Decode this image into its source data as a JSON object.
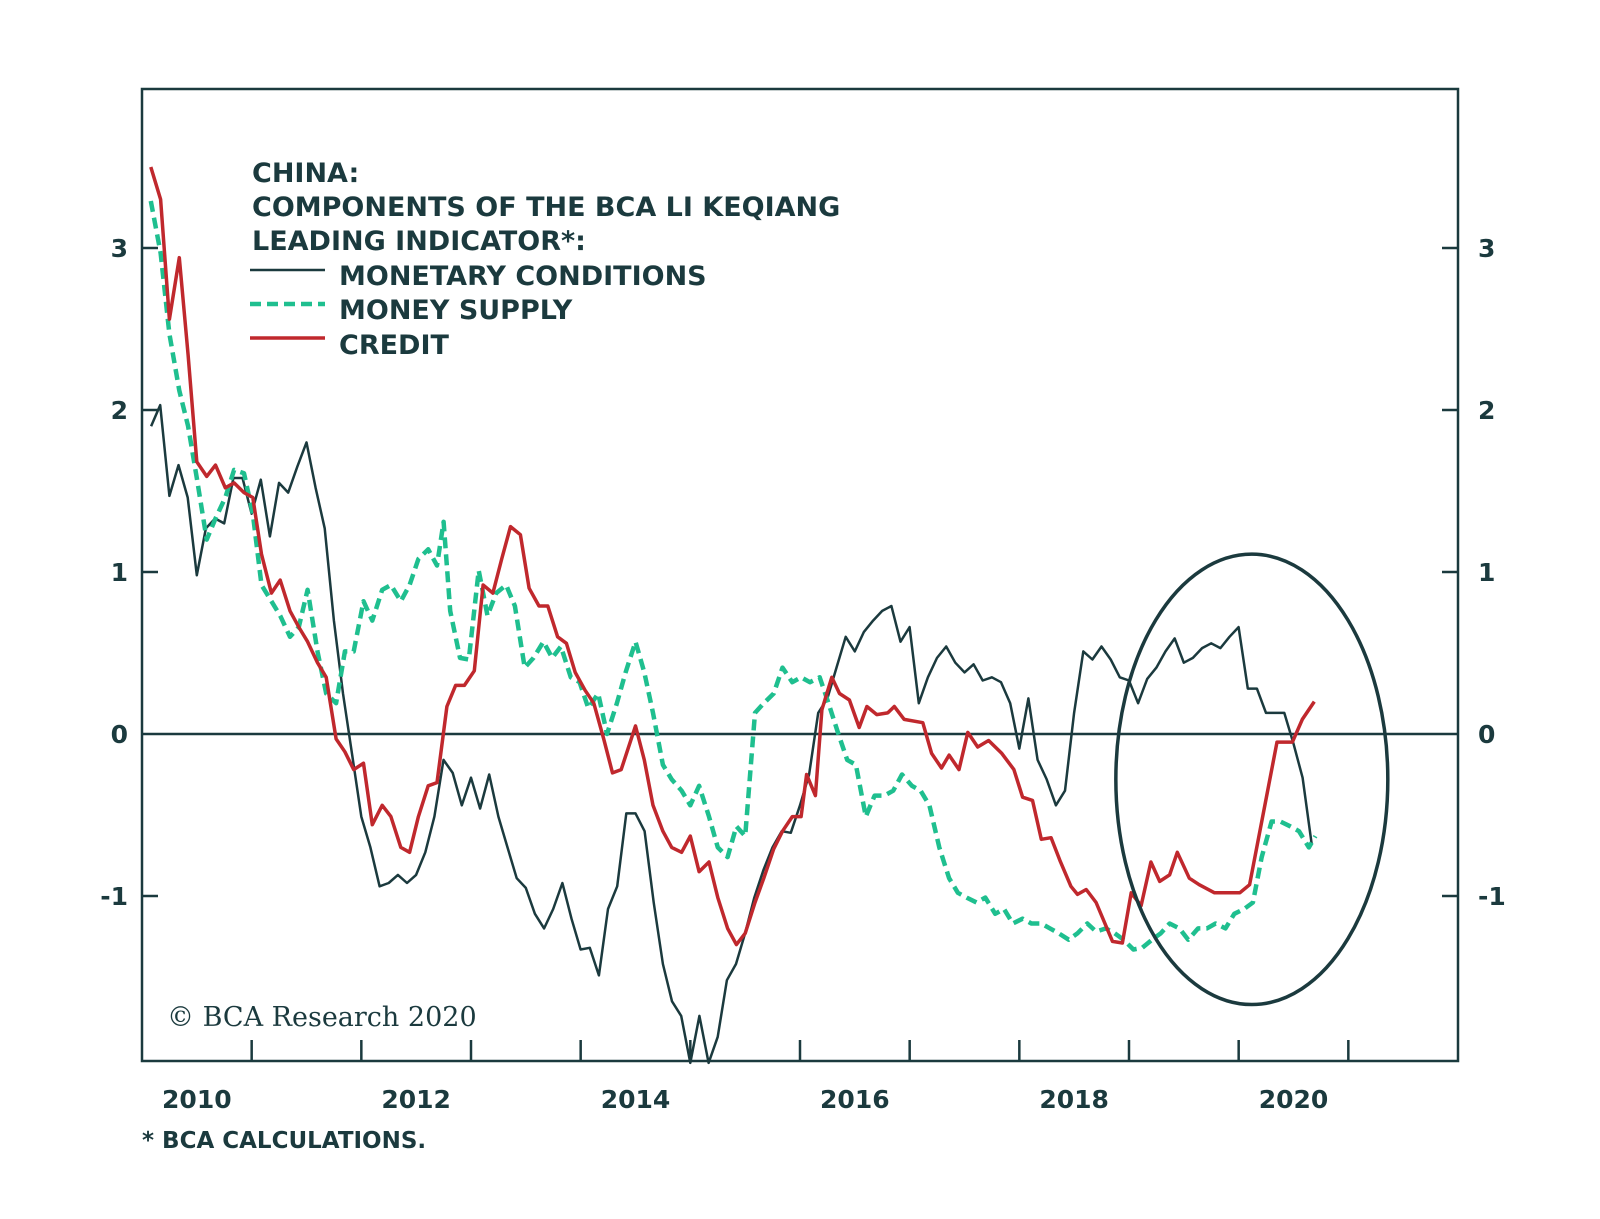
{
  "chart_data": {
    "type": "line",
    "title": [
      "CHINA:",
      "COMPONENTS OF THE BCA LI KEQIANG",
      "LEADING INDICATOR*:"
    ],
    "xlabel": "",
    "ylabel": "",
    "xlim": [
      2010,
      2022
    ],
    "ylim": [
      -2,
      4
    ],
    "x_tick_labels": [
      "2010",
      "2012",
      "2014",
      "2016",
      "2018",
      "2020"
    ],
    "x_tick_values": [
      2010.5,
      2012.5,
      2014.5,
      2016.5,
      2018.5,
      2020.5
    ],
    "x_minor_ticks": [
      2011,
      2012,
      2013,
      2014,
      2015,
      2016,
      2017,
      2018,
      2019,
      2020,
      2021
    ],
    "y_ticks": [
      3,
      2,
      1,
      0,
      -1
    ],
    "y_tick_labels": [
      "3",
      "2",
      "1",
      "0",
      "-1"
    ],
    "zero_line": true,
    "grid": false,
    "legend_position": "top-left",
    "colors": {
      "axis": "#1b3a3e",
      "monetary": "#1b3a3e",
      "money": "#1fbf8f",
      "credit": "#c0282d"
    },
    "series": [
      {
        "name": "MONETARY CONDITIONS",
        "style": "solid",
        "x_start": 2010.083,
        "frequency": "monthly",
        "values": [
          1.9,
          2.03,
          1.47,
          1.66,
          1.46,
          0.98,
          1.27,
          1.33,
          1.3,
          1.58,
          1.58,
          1.36,
          1.57,
          1.22,
          1.55,
          1.49,
          1.65,
          1.8,
          1.52,
          1.27,
          0.7,
          0.25,
          -0.13,
          -0.51,
          -0.7,
          -0.94,
          -0.92,
          -0.87,
          -0.92,
          -0.87,
          -0.73,
          -0.51,
          -0.16,
          -0.24,
          -0.44,
          -0.27,
          -0.46,
          -0.25,
          -0.51,
          -0.7,
          -0.89,
          -0.95,
          -1.11,
          -1.2,
          -1.08,
          -0.92,
          -1.14,
          -1.33,
          -1.32,
          -1.49,
          -1.08,
          -0.94,
          -0.49,
          -0.49,
          -0.6,
          -1.04,
          -1.42,
          -1.65,
          -1.74,
          -2.03,
          -1.74,
          -2.03,
          -1.87,
          -1.52,
          -1.42,
          -1.23,
          -1.01,
          -0.84,
          -0.7,
          -0.6,
          -0.61,
          -0.44,
          -0.25,
          0.13,
          0.22,
          0.41,
          0.6,
          0.51,
          0.63,
          0.7,
          0.76,
          0.79,
          0.57,
          0.66,
          0.19,
          0.35,
          0.47,
          0.54,
          0.44,
          0.38,
          0.43,
          0.33,
          0.35,
          0.32,
          0.19,
          -0.09,
          0.22,
          -0.16,
          -0.28,
          -0.44,
          -0.35,
          0.13,
          0.51,
          0.46,
          0.54,
          0.46,
          0.35,
          0.33,
          0.19,
          0.34,
          0.41,
          0.51,
          0.59,
          0.44,
          0.47,
          0.53,
          0.56,
          0.53,
          0.6,
          0.66,
          0.28,
          0.28,
          0.13,
          0.13,
          0.13,
          -0.06,
          -0.27,
          -0.68
        ]
      },
      {
        "name": "MONEY SUPPLY",
        "style": "dashed",
        "points": [
          [
            2010.08,
            3.29
          ],
          [
            2010.17,
            2.97
          ],
          [
            2010.25,
            2.47
          ],
          [
            2010.34,
            2.12
          ],
          [
            2010.42,
            1.9
          ],
          [
            2010.5,
            1.58
          ],
          [
            2010.59,
            1.2
          ],
          [
            2010.67,
            1.33
          ],
          [
            2010.76,
            1.46
          ],
          [
            2010.84,
            1.63
          ],
          [
            2010.93,
            1.61
          ],
          [
            2011.01,
            1.36
          ],
          [
            2011.09,
            0.92
          ],
          [
            2011.18,
            0.82
          ],
          [
            2011.26,
            0.73
          ],
          [
            2011.35,
            0.6
          ],
          [
            2011.43,
            0.66
          ],
          [
            2011.51,
            0.89
          ],
          [
            2011.6,
            0.51
          ],
          [
            2011.68,
            0.25
          ],
          [
            2011.77,
            0.19
          ],
          [
            2011.85,
            0.51
          ],
          [
            2011.93,
            0.51
          ],
          [
            2012.02,
            0.82
          ],
          [
            2012.1,
            0.7
          ],
          [
            2012.19,
            0.89
          ],
          [
            2012.27,
            0.92
          ],
          [
            2012.36,
            0.82
          ],
          [
            2012.44,
            0.92
          ],
          [
            2012.52,
            1.08
          ],
          [
            2012.61,
            1.14
          ],
          [
            2012.69,
            1.04
          ],
          [
            2012.75,
            1.31
          ],
          [
            2012.81,
            0.76
          ],
          [
            2012.9,
            0.47
          ],
          [
            2012.98,
            0.46
          ],
          [
            2013.07,
            1.01
          ],
          [
            2013.15,
            0.73
          ],
          [
            2013.23,
            0.87
          ],
          [
            2013.32,
            0.92
          ],
          [
            2013.4,
            0.79
          ],
          [
            2013.49,
            0.41
          ],
          [
            2013.57,
            0.47
          ],
          [
            2013.66,
            0.57
          ],
          [
            2013.74,
            0.47
          ],
          [
            2013.82,
            0.54
          ],
          [
            2013.91,
            0.35
          ],
          [
            2013.99,
            0.32
          ],
          [
            2014.07,
            0.16
          ],
          [
            2014.16,
            0.25
          ],
          [
            2014.24,
            0.0
          ],
          [
            2014.33,
            0.19
          ],
          [
            2014.41,
            0.38
          ],
          [
            2014.5,
            0.57
          ],
          [
            2014.58,
            0.38
          ],
          [
            2014.66,
            0.13
          ],
          [
            2014.75,
            -0.19
          ],
          [
            2014.83,
            -0.28
          ],
          [
            2014.92,
            -0.35
          ],
          [
            2015.0,
            -0.44
          ],
          [
            2015.08,
            -0.32
          ],
          [
            2015.17,
            -0.51
          ],
          [
            2015.25,
            -0.7
          ],
          [
            2015.34,
            -0.76
          ],
          [
            2015.42,
            -0.57
          ],
          [
            2015.5,
            -0.63
          ],
          [
            2015.59,
            0.13
          ],
          [
            2015.67,
            0.19
          ],
          [
            2015.76,
            0.25
          ],
          [
            2015.84,
            0.41
          ],
          [
            2015.93,
            0.32
          ],
          [
            2016.01,
            0.35
          ],
          [
            2016.09,
            0.32
          ],
          [
            2016.18,
            0.35
          ],
          [
            2016.26,
            0.19
          ],
          [
            2016.35,
            0.0
          ],
          [
            2016.43,
            -0.16
          ],
          [
            2016.51,
            -0.19
          ],
          [
            2016.6,
            -0.51
          ],
          [
            2016.68,
            -0.38
          ],
          [
            2016.77,
            -0.38
          ],
          [
            2016.85,
            -0.35
          ],
          [
            2016.93,
            -0.25
          ],
          [
            2017.02,
            -0.32
          ],
          [
            2017.1,
            -0.35
          ],
          [
            2017.18,
            -0.44
          ],
          [
            2017.27,
            -0.7
          ],
          [
            2017.36,
            -0.89
          ],
          [
            2017.44,
            -0.98
          ],
          [
            2017.52,
            -1.01
          ],
          [
            2017.61,
            -1.04
          ],
          [
            2017.69,
            -1.01
          ],
          [
            2017.78,
            -1.11
          ],
          [
            2017.86,
            -1.08
          ],
          [
            2017.94,
            -1.17
          ],
          [
            2018.03,
            -1.14
          ],
          [
            2018.11,
            -1.17
          ],
          [
            2018.2,
            -1.17
          ],
          [
            2018.28,
            -1.2
          ],
          [
            2018.36,
            -1.23
          ],
          [
            2018.45,
            -1.27
          ],
          [
            2018.53,
            -1.23
          ],
          [
            2018.62,
            -1.17
          ],
          [
            2018.7,
            -1.22
          ],
          [
            2018.79,
            -1.2
          ],
          [
            2018.87,
            -1.23
          ],
          [
            2018.95,
            -1.27
          ],
          [
            2019.04,
            -1.33
          ],
          [
            2019.12,
            -1.32
          ],
          [
            2019.21,
            -1.27
          ],
          [
            2019.29,
            -1.23
          ],
          [
            2019.37,
            -1.17
          ],
          [
            2019.46,
            -1.2
          ],
          [
            2019.54,
            -1.27
          ],
          [
            2019.63,
            -1.2
          ],
          [
            2019.71,
            -1.2
          ],
          [
            2019.79,
            -1.17
          ],
          [
            2019.88,
            -1.2
          ],
          [
            2019.96,
            -1.11
          ],
          [
            2020.05,
            -1.08
          ],
          [
            2020.13,
            -1.04
          ],
          [
            2020.21,
            -0.76
          ],
          [
            2020.3,
            -0.54
          ],
          [
            2020.38,
            -0.54
          ],
          [
            2020.47,
            -0.57
          ],
          [
            2020.55,
            -0.6
          ],
          [
            2020.64,
            -0.7
          ],
          [
            2020.7,
            -0.63
          ]
        ]
      },
      {
        "name": "CREDIT",
        "style": "solid",
        "points": [
          [
            2010.08,
            3.5
          ],
          [
            2010.17,
            3.3
          ],
          [
            2010.25,
            2.56
          ],
          [
            2010.34,
            2.94
          ],
          [
            2010.42,
            2.34
          ],
          [
            2010.5,
            1.68
          ],
          [
            2010.59,
            1.59
          ],
          [
            2010.67,
            1.66
          ],
          [
            2010.76,
            1.52
          ],
          [
            2010.84,
            1.55
          ],
          [
            2010.93,
            1.49
          ],
          [
            2011.01,
            1.46
          ],
          [
            2011.09,
            1.11
          ],
          [
            2011.18,
            0.87
          ],
          [
            2011.26,
            0.95
          ],
          [
            2011.35,
            0.76
          ],
          [
            2011.43,
            0.66
          ],
          [
            2011.51,
            0.57
          ],
          [
            2011.6,
            0.44
          ],
          [
            2011.68,
            0.35
          ],
          [
            2011.77,
            -0.03
          ],
          [
            2011.85,
            -0.11
          ],
          [
            2011.93,
            -0.22
          ],
          [
            2012.02,
            -0.18
          ],
          [
            2012.1,
            -0.56
          ],
          [
            2012.19,
            -0.44
          ],
          [
            2012.27,
            -0.51
          ],
          [
            2012.36,
            -0.7
          ],
          [
            2012.44,
            -0.73
          ],
          [
            2012.52,
            -0.51
          ],
          [
            2012.61,
            -0.32
          ],
          [
            2012.69,
            -0.3
          ],
          [
            2012.78,
            0.17
          ],
          [
            2012.86,
            0.3
          ],
          [
            2012.94,
            0.3
          ],
          [
            2013.03,
            0.39
          ],
          [
            2013.11,
            0.92
          ],
          [
            2013.2,
            0.87
          ],
          [
            2013.28,
            1.08
          ],
          [
            2013.36,
            1.28
          ],
          [
            2013.45,
            1.23
          ],
          [
            2013.53,
            0.9
          ],
          [
            2013.62,
            0.79
          ],
          [
            2013.7,
            0.79
          ],
          [
            2013.79,
            0.6
          ],
          [
            2013.87,
            0.56
          ],
          [
            2013.95,
            0.38
          ],
          [
            2014.04,
            0.27
          ],
          [
            2014.12,
            0.19
          ],
          [
            2014.21,
            -0.03
          ],
          [
            2014.29,
            -0.24
          ],
          [
            2014.37,
            -0.22
          ],
          [
            2014.5,
            0.05
          ],
          [
            2014.58,
            -0.16
          ],
          [
            2014.66,
            -0.44
          ],
          [
            2014.75,
            -0.6
          ],
          [
            2014.83,
            -0.7
          ],
          [
            2014.92,
            -0.73
          ],
          [
            2015.0,
            -0.63
          ],
          [
            2015.08,
            -0.85
          ],
          [
            2015.17,
            -0.79
          ],
          [
            2015.25,
            -1.01
          ],
          [
            2015.34,
            -1.2
          ],
          [
            2015.42,
            -1.3
          ],
          [
            2015.5,
            -1.23
          ],
          [
            2015.59,
            -1.04
          ],
          [
            2015.67,
            -0.89
          ],
          [
            2015.76,
            -0.71
          ],
          [
            2015.84,
            -0.6
          ],
          [
            2015.93,
            -0.51
          ],
          [
            2016.01,
            -0.51
          ],
          [
            2016.06,
            -0.25
          ],
          [
            2016.14,
            -0.38
          ],
          [
            2016.2,
            0.15
          ],
          [
            2016.29,
            0.35
          ],
          [
            2016.36,
            0.25
          ],
          [
            2016.45,
            0.21
          ],
          [
            2016.54,
            0.04
          ],
          [
            2016.61,
            0.17
          ],
          [
            2016.7,
            0.12
          ],
          [
            2016.8,
            0.13
          ],
          [
            2016.86,
            0.17
          ],
          [
            2016.95,
            0.09
          ],
          [
            2017.12,
            0.07
          ],
          [
            2017.2,
            -0.12
          ],
          [
            2017.29,
            -0.21
          ],
          [
            2017.36,
            -0.13
          ],
          [
            2017.45,
            -0.22
          ],
          [
            2017.53,
            0.01
          ],
          [
            2017.62,
            -0.08
          ],
          [
            2017.72,
            -0.04
          ],
          [
            2017.84,
            -0.12
          ],
          [
            2017.95,
            -0.22
          ],
          [
            2018.03,
            -0.39
          ],
          [
            2018.12,
            -0.41
          ],
          [
            2018.2,
            -0.65
          ],
          [
            2018.29,
            -0.64
          ],
          [
            2018.37,
            -0.78
          ],
          [
            2018.47,
            -0.94
          ],
          [
            2018.53,
            -0.99
          ],
          [
            2018.61,
            -0.96
          ],
          [
            2018.7,
            -1.04
          ],
          [
            2018.85,
            -1.28
          ],
          [
            2018.94,
            -1.29
          ],
          [
            2019.02,
            -0.98
          ],
          [
            2019.11,
            -1.06
          ],
          [
            2019.2,
            -0.79
          ],
          [
            2019.28,
            -0.91
          ],
          [
            2019.37,
            -0.87
          ],
          [
            2019.44,
            -0.73
          ],
          [
            2019.55,
            -0.89
          ],
          [
            2019.64,
            -0.93
          ],
          [
            2019.78,
            -0.98
          ],
          [
            2020.01,
            -0.98
          ],
          [
            2020.1,
            -0.93
          ],
          [
            2020.35,
            -0.05
          ],
          [
            2020.49,
            -0.05
          ],
          [
            2020.58,
            0.09
          ],
          [
            2020.69,
            0.2
          ]
        ]
      }
    ],
    "annotation_ellipse": {
      "center": [
        2020.12,
        -0.28
      ],
      "radius_years": 1.24,
      "radius_units": 1.39
    },
    "footnote": "* BCA CALCULATIONS.",
    "copyright": "© BCA Research 2020"
  }
}
